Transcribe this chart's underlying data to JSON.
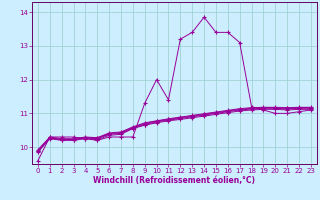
{
  "xlabel": "Windchill (Refroidissement éolien,°C)",
  "background_color": "#cceeff",
  "grid_color": "#99cccc",
  "line_color": "#990099",
  "spine_color": "#660066",
  "xlim": [
    -0.5,
    23.5
  ],
  "ylim": [
    9.5,
    14.3
  ],
  "yticks": [
    10,
    11,
    12,
    13,
    14
  ],
  "xticks": [
    0,
    1,
    2,
    3,
    4,
    5,
    6,
    7,
    8,
    9,
    10,
    11,
    12,
    13,
    14,
    15,
    16,
    17,
    18,
    19,
    20,
    21,
    22,
    23
  ],
  "series": [
    [
      9.6,
      10.3,
      10.3,
      10.3,
      10.25,
      10.2,
      10.3,
      10.3,
      10.3,
      11.3,
      12.0,
      11.4,
      13.2,
      13.4,
      13.85,
      13.4,
      13.4,
      13.1,
      11.2,
      11.1,
      11.0,
      11.0,
      11.05,
      11.1
    ],
    [
      9.85,
      10.25,
      10.2,
      10.2,
      10.25,
      10.22,
      10.35,
      10.38,
      10.55,
      10.65,
      10.72,
      10.78,
      10.82,
      10.87,
      10.92,
      10.97,
      11.02,
      11.07,
      11.1,
      11.12,
      11.12,
      11.1,
      11.12,
      11.12
    ],
    [
      9.88,
      10.27,
      10.22,
      10.22,
      10.27,
      10.25,
      10.38,
      10.41,
      10.57,
      10.67,
      10.75,
      10.8,
      10.85,
      10.9,
      10.95,
      11.0,
      11.05,
      11.1,
      11.13,
      11.15,
      11.15,
      11.13,
      11.15,
      11.15
    ],
    [
      9.9,
      10.28,
      10.23,
      10.23,
      10.28,
      10.27,
      10.4,
      10.43,
      10.58,
      10.7,
      10.77,
      10.82,
      10.87,
      10.92,
      10.97,
      11.02,
      11.07,
      11.12,
      11.15,
      11.17,
      11.17,
      11.15,
      11.17,
      11.17
    ],
    [
      9.92,
      10.3,
      10.25,
      10.25,
      10.3,
      10.28,
      10.42,
      10.45,
      10.6,
      10.72,
      10.78,
      10.84,
      10.89,
      10.94,
      10.99,
      11.04,
      11.09,
      11.14,
      11.17,
      11.18,
      11.18,
      11.17,
      11.18,
      11.18
    ]
  ]
}
